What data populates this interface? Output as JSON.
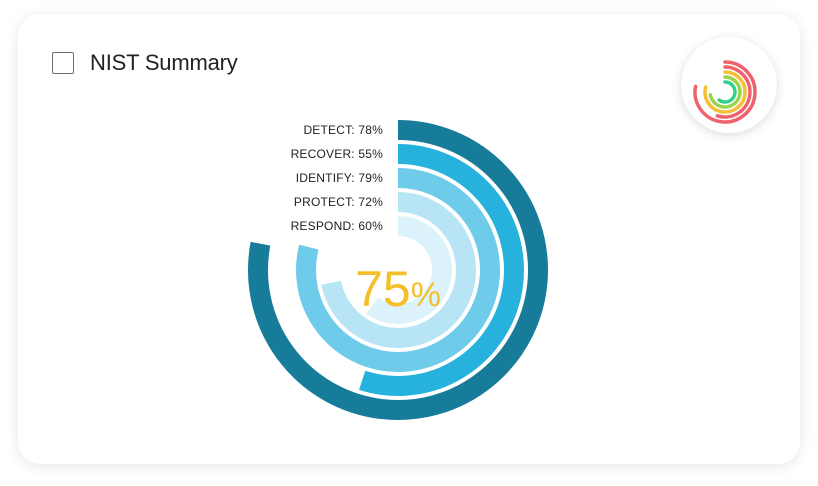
{
  "header": {
    "title": "NIST Summary"
  },
  "center": {
    "value": "75",
    "unit": "%",
    "color": "#f5bf2a"
  },
  "chart_data": {
    "type": "radial-bar",
    "title": "NIST Summary",
    "max": 100,
    "categories": [
      "DETECT",
      "RECOVER",
      "IDENTIFY",
      "PROTECT",
      "RESPOND"
    ],
    "values": [
      78,
      55,
      79,
      72,
      60
    ],
    "labels": [
      "DETECT: 78%",
      "RECOVER: 55%",
      "IDENTIFY: 79%",
      "PROTECT: 72%",
      "RESPOND: 60%"
    ],
    "colors": [
      "#177b9a",
      "#26b2dc",
      "#6fcbea",
      "#b8e5f5",
      "#dcf3fb"
    ],
    "overall": 75
  },
  "mini_chart": {
    "values": [
      0.78,
      0.55,
      0.79,
      0.72,
      0.6
    ],
    "colors": [
      "#f0626b",
      "#f0626b",
      "#f5c035",
      "#9ad34a",
      "#33d08b"
    ]
  }
}
